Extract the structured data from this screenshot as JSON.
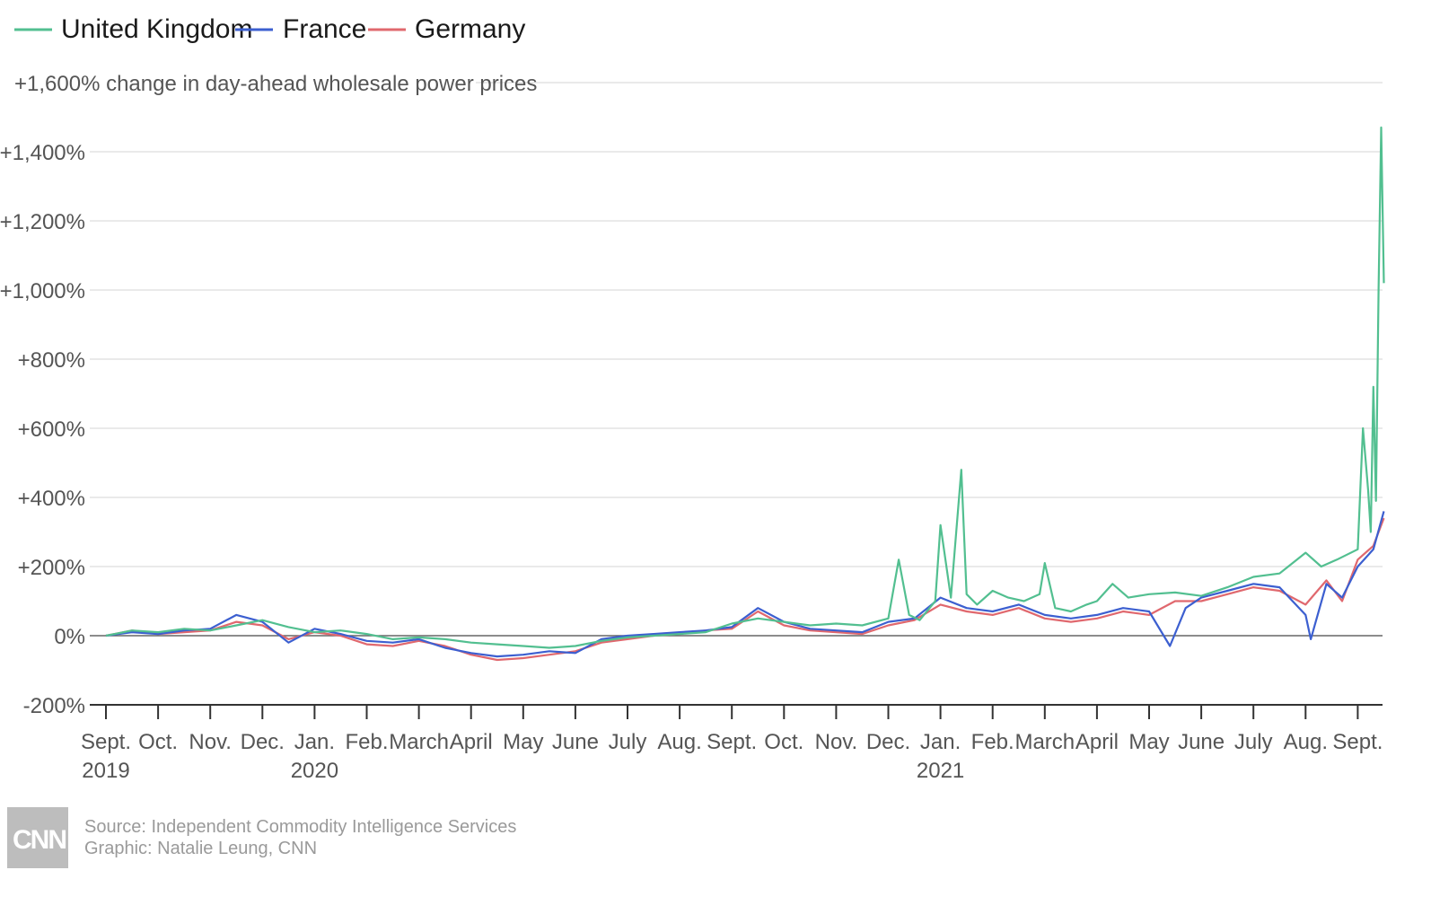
{
  "chart_data": {
    "type": "line",
    "title": "",
    "ylabel": "+1,600% change in day-ahead wholesale power prices",
    "ylim": [
      -200,
      1600
    ],
    "yticks": [
      {
        "value": -200,
        "label": "-200%"
      },
      {
        "value": 0,
        "label": "0%"
      },
      {
        "value": 200,
        "label": "+200%"
      },
      {
        "value": 400,
        "label": "+400%"
      },
      {
        "value": 600,
        "label": "+600%"
      },
      {
        "value": 800,
        "label": "+800%"
      },
      {
        "value": 1000,
        "label": "+1,000%"
      },
      {
        "value": 1200,
        "label": "+1,200%"
      },
      {
        "value": 1400,
        "label": "+1,400%"
      }
    ],
    "xlim": [
      0,
      24.5
    ],
    "xticks": [
      {
        "value": 0,
        "label": "Sept.",
        "year": "2019"
      },
      {
        "value": 1,
        "label": "Oct.",
        "year": ""
      },
      {
        "value": 2,
        "label": "Nov.",
        "year": ""
      },
      {
        "value": 3,
        "label": "Dec.",
        "year": ""
      },
      {
        "value": 4,
        "label": "Jan.",
        "year": "2020"
      },
      {
        "value": 5,
        "label": "Feb.",
        "year": ""
      },
      {
        "value": 6,
        "label": "March",
        "year": ""
      },
      {
        "value": 7,
        "label": "April",
        "year": ""
      },
      {
        "value": 8,
        "label": "May",
        "year": ""
      },
      {
        "value": 9,
        "label": "June",
        "year": ""
      },
      {
        "value": 10,
        "label": "July",
        "year": ""
      },
      {
        "value": 11,
        "label": "Aug.",
        "year": ""
      },
      {
        "value": 12,
        "label": "Sept.",
        "year": ""
      },
      {
        "value": 13,
        "label": "Oct.",
        "year": ""
      },
      {
        "value": 14,
        "label": "Nov.",
        "year": ""
      },
      {
        "value": 15,
        "label": "Dec.",
        "year": ""
      },
      {
        "value": 16,
        "label": "Jan.",
        "year": "2021"
      },
      {
        "value": 17,
        "label": "Feb.",
        "year": ""
      },
      {
        "value": 18,
        "label": "March",
        "year": ""
      },
      {
        "value": 19,
        "label": "April",
        "year": ""
      },
      {
        "value": 20,
        "label": "May",
        "year": ""
      },
      {
        "value": 21,
        "label": "June",
        "year": ""
      },
      {
        "value": 22,
        "label": "July",
        "year": ""
      },
      {
        "value": 23,
        "label": "Aug.",
        "year": ""
      },
      {
        "value": 24,
        "label": "Sept.",
        "year": ""
      }
    ],
    "grid": true,
    "legend_position": "top-left",
    "series": [
      {
        "name": "United Kingdom",
        "color": "#52bf90",
        "points": [
          [
            0,
            0
          ],
          [
            0.5,
            15
          ],
          [
            1,
            10
          ],
          [
            1.5,
            20
          ],
          [
            2,
            15
          ],
          [
            2.5,
            30
          ],
          [
            3,
            45
          ],
          [
            3.5,
            25
          ],
          [
            4,
            10
          ],
          [
            4.5,
            15
          ],
          [
            5,
            5
          ],
          [
            5.5,
            -10
          ],
          [
            6,
            -5
          ],
          [
            6.5,
            -10
          ],
          [
            7,
            -20
          ],
          [
            7.5,
            -25
          ],
          [
            8,
            -30
          ],
          [
            8.5,
            -35
          ],
          [
            9,
            -30
          ],
          [
            9.5,
            -15
          ],
          [
            10,
            -5
          ],
          [
            10.5,
            0
          ],
          [
            11,
            5
          ],
          [
            11.5,
            10
          ],
          [
            12,
            35
          ],
          [
            12.5,
            50
          ],
          [
            13,
            40
          ],
          [
            13.5,
            30
          ],
          [
            14,
            35
          ],
          [
            14.5,
            30
          ],
          [
            15,
            50
          ],
          [
            15.2,
            220
          ],
          [
            15.4,
            60
          ],
          [
            15.6,
            45
          ],
          [
            15.9,
            100
          ],
          [
            16,
            320
          ],
          [
            16.2,
            110
          ],
          [
            16.4,
            480
          ],
          [
            16.5,
            120
          ],
          [
            16.7,
            90
          ],
          [
            17,
            130
          ],
          [
            17.3,
            110
          ],
          [
            17.6,
            100
          ],
          [
            17.9,
            120
          ],
          [
            18,
            210
          ],
          [
            18.2,
            80
          ],
          [
            18.5,
            70
          ],
          [
            18.8,
            90
          ],
          [
            19,
            100
          ],
          [
            19.3,
            150
          ],
          [
            19.6,
            110
          ],
          [
            20,
            120
          ],
          [
            20.5,
            125
          ],
          [
            21,
            115
          ],
          [
            21.5,
            140
          ],
          [
            22,
            170
          ],
          [
            22.5,
            180
          ],
          [
            23,
            240
          ],
          [
            23.3,
            200
          ],
          [
            23.6,
            220
          ],
          [
            24,
            250
          ],
          [
            24.1,
            600
          ],
          [
            24.2,
            420
          ],
          [
            24.25,
            300
          ],
          [
            24.3,
            720
          ],
          [
            24.35,
            390
          ],
          [
            24.4,
            1000
          ],
          [
            24.45,
            1470
          ],
          [
            24.5,
            1020
          ]
        ]
      },
      {
        "name": "France",
        "color": "#3c5fd0",
        "points": [
          [
            0,
            0
          ],
          [
            0.5,
            10
          ],
          [
            1,
            5
          ],
          [
            1.5,
            15
          ],
          [
            2,
            20
          ],
          [
            2.5,
            60
          ],
          [
            3,
            40
          ],
          [
            3.5,
            -20
          ],
          [
            4,
            20
          ],
          [
            4.5,
            5
          ],
          [
            5,
            -15
          ],
          [
            5.5,
            -20
          ],
          [
            6,
            -10
          ],
          [
            6.5,
            -35
          ],
          [
            7,
            -50
          ],
          [
            7.5,
            -60
          ],
          [
            8,
            -55
          ],
          [
            8.5,
            -45
          ],
          [
            9,
            -50
          ],
          [
            9.5,
            -10
          ],
          [
            10,
            0
          ],
          [
            10.5,
            5
          ],
          [
            11,
            10
          ],
          [
            11.5,
            15
          ],
          [
            12,
            25
          ],
          [
            12.5,
            80
          ],
          [
            13,
            40
          ],
          [
            13.5,
            20
          ],
          [
            14,
            15
          ],
          [
            14.5,
            10
          ],
          [
            15,
            40
          ],
          [
            15.5,
            50
          ],
          [
            16,
            110
          ],
          [
            16.5,
            80
          ],
          [
            17,
            70
          ],
          [
            17.5,
            90
          ],
          [
            18,
            60
          ],
          [
            18.5,
            50
          ],
          [
            19,
            60
          ],
          [
            19.5,
            80
          ],
          [
            20,
            70
          ],
          [
            20.4,
            -30
          ],
          [
            20.7,
            80
          ],
          [
            21,
            110
          ],
          [
            21.5,
            130
          ],
          [
            22,
            150
          ],
          [
            22.5,
            140
          ],
          [
            23,
            60
          ],
          [
            23.1,
            -10
          ],
          [
            23.4,
            150
          ],
          [
            23.7,
            110
          ],
          [
            24,
            200
          ],
          [
            24.3,
            250
          ],
          [
            24.5,
            360
          ]
        ]
      },
      {
        "name": "Germany",
        "color": "#e0686e",
        "points": [
          [
            0,
            0
          ],
          [
            0.5,
            15
          ],
          [
            1,
            5
          ],
          [
            1.5,
            10
          ],
          [
            2,
            15
          ],
          [
            2.5,
            40
          ],
          [
            3,
            30
          ],
          [
            3.5,
            -10
          ],
          [
            4,
            10
          ],
          [
            4.5,
            0
          ],
          [
            5,
            -25
          ],
          [
            5.5,
            -30
          ],
          [
            6,
            -15
          ],
          [
            6.5,
            -30
          ],
          [
            7,
            -55
          ],
          [
            7.5,
            -70
          ],
          [
            8,
            -65
          ],
          [
            8.5,
            -55
          ],
          [
            9,
            -45
          ],
          [
            9.5,
            -20
          ],
          [
            10,
            -10
          ],
          [
            10.5,
            0
          ],
          [
            11,
            5
          ],
          [
            11.5,
            15
          ],
          [
            12,
            20
          ],
          [
            12.5,
            70
          ],
          [
            13,
            30
          ],
          [
            13.5,
            15
          ],
          [
            14,
            10
          ],
          [
            14.5,
            5
          ],
          [
            15,
            30
          ],
          [
            15.5,
            45
          ],
          [
            16,
            90
          ],
          [
            16.5,
            70
          ],
          [
            17,
            60
          ],
          [
            17.5,
            80
          ],
          [
            18,
            50
          ],
          [
            18.5,
            40
          ],
          [
            19,
            50
          ],
          [
            19.5,
            70
          ],
          [
            20,
            60
          ],
          [
            20.5,
            100
          ],
          [
            21,
            100
          ],
          [
            21.5,
            120
          ],
          [
            22,
            140
          ],
          [
            22.5,
            130
          ],
          [
            23,
            90
          ],
          [
            23.4,
            160
          ],
          [
            23.7,
            100
          ],
          [
            24,
            220
          ],
          [
            24.3,
            260
          ],
          [
            24.5,
            340
          ]
        ]
      }
    ]
  },
  "legend": {
    "items": [
      {
        "label": "United Kingdom",
        "color": "#52bf90"
      },
      {
        "label": "France",
        "color": "#3c5fd0"
      },
      {
        "label": "Germany",
        "color": "#e0686e"
      }
    ]
  },
  "footer": {
    "logo": "CNN",
    "source": "Source: Independent Commodity Intelligence Services",
    "credit": "Graphic: Natalie Leung, CNN"
  }
}
